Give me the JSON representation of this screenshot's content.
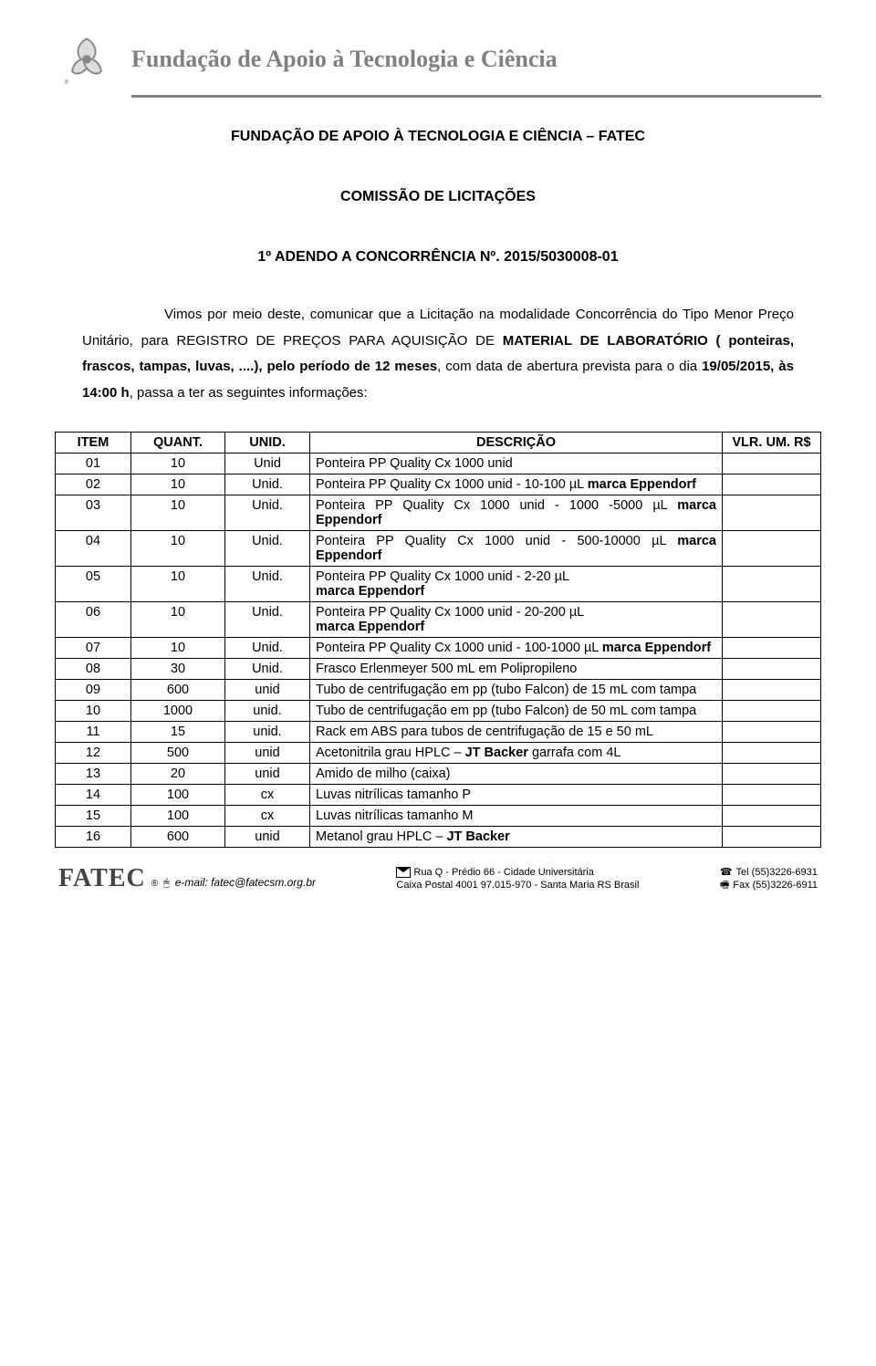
{
  "header": {
    "org_title": "Fundação de Apoio à Tecnologia e Ciência"
  },
  "doc": {
    "title": "FUNDAÇÃO DE APOIO À TECNOLOGIA E CIÊNCIA – FATEC",
    "subtitle": "COMISSÃO DE LICITAÇÕES",
    "ref": "1º ADENDO A CONCORRÊNCIA Nº. 2015/5030008-01",
    "body_html": "Vimos por meio deste, comunicar que a Licitação na modalidade Concorrência do Tipo Menor Preço Unitário, para REGISTRO DE PREÇOS PARA AQUISIÇÃO DE <b>MATERIAL DE LABORATÓRIO ( ponteiras, frascos, tampas, luvas, ....), pelo período de 12 meses</b>, com data de abertura prevista para o dia <b>19/05/2015, às 14:00 h</b>, passa a ter as seguintes informações:"
  },
  "table": {
    "headers": {
      "item": "ITEM",
      "qty": "QUANT.",
      "unit": "UNID.",
      "desc": "DESCRIÇÃO",
      "vlr": "VLR. UM. R$"
    },
    "rows": [
      {
        "item": "01",
        "qty": "10",
        "unit": "Unid",
        "desc": "Ponteira PP Quality Cx 1000 unid"
      },
      {
        "item": "02",
        "qty": "10",
        "unit": "Unid.",
        "desc": "Ponteira PP Quality Cx 1000 unid - 10-100 µL <b>marca Eppendorf</b>"
      },
      {
        "item": "03",
        "qty": "10",
        "unit": "Unid.",
        "desc": "Ponteira PP Quality Cx 1000 unid - 1000 -5000 µL <b>marca Eppendorf</b>"
      },
      {
        "item": "04",
        "qty": "10",
        "unit": "Unid.",
        "desc": "Ponteira PP Quality Cx 1000 unid - 500-10000 µL <b>marca Eppendorf</b>"
      },
      {
        "item": "05",
        "qty": "10",
        "unit": "Unid.",
        "desc": "Ponteira PP Quality Cx 1000 unid - 2-20 µL<br><b>marca Eppendorf</b>"
      },
      {
        "item": "06",
        "qty": "10",
        "unit": "Unid.",
        "desc": "Ponteira PP Quality Cx 1000 unid - 20-200 µL<br><b>marca Eppendorf</b>"
      },
      {
        "item": "07",
        "qty": "10",
        "unit": "Unid.",
        "desc": "Ponteira PP Quality Cx 1000 unid - 100-1000 µL <b>marca Eppendorf</b>"
      },
      {
        "item": "08",
        "qty": "30",
        "unit": "Unid.",
        "desc": "Frasco Erlenmeyer 500 mL em Polipropileno"
      },
      {
        "item": "09",
        "qty": "600",
        "unit": "unid",
        "desc": "Tubo de centrifugação em pp (tubo Falcon) de 15 mL com tampa"
      },
      {
        "item": "10",
        "qty": "1000",
        "unit": "unid.",
        "desc": "Tubo de centrifugação em pp (tubo Falcon) de 50 mL com tampa"
      },
      {
        "item": "11",
        "qty": "15",
        "unit": "unid.",
        "desc": "Rack em ABS para tubos de centrifugação de 15 e 50 mL"
      },
      {
        "item": "12",
        "qty": "500",
        "unit": "unid",
        "desc": "Acetonitrila grau HPLC – <b>JT Backer</b> garrafa com 4L"
      },
      {
        "item": "13",
        "qty": "20",
        "unit": "unid",
        "desc": "Amido de milho (caixa)"
      },
      {
        "item": "14",
        "qty": "100",
        "unit": "cx",
        "desc": "Luvas nitrílicas tamanho P"
      },
      {
        "item": "15",
        "qty": "100",
        "unit": "cx",
        "desc": "Luvas nitrílicas tamanho M"
      },
      {
        "item": "16",
        "qty": "600",
        "unit": "unid",
        "desc": "Metanol grau HPLC – <b>JT Backer</b>"
      }
    ]
  },
  "footer": {
    "brand": "FATEC",
    "email_label": "e-mail:",
    "email": "fatec@fatecsm.org.br",
    "addr_line1": "Rua Q - Prédio 66 -   Cidade Universitária",
    "addr_line2": "Caixa Postal 4001       97.015-970  - Santa Maria  RS Brasil",
    "tel_label": "Tel",
    "tel": "(55)3226-6931",
    "fax_label": "Fax",
    "fax": "(55)3226-6911"
  }
}
